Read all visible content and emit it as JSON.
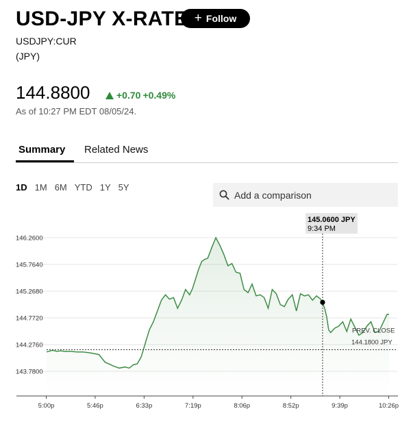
{
  "header": {
    "title": "USD-JPY X-RATE",
    "follow_label": "Follow",
    "ticker": "USDJPY:CUR",
    "currency": "(JPY)"
  },
  "quote": {
    "price": "144.8800",
    "change": "+0.70",
    "change_pct": "+0.49%",
    "as_of": "As of 10:27 PM EDT 08/05/24.",
    "up_color": "#2e8b3a"
  },
  "tabs": [
    {
      "label": "Summary",
      "active": true
    },
    {
      "label": "Related News",
      "active": false
    }
  ],
  "ranges": [
    "1D",
    "1M",
    "6M",
    "YTD",
    "1Y",
    "5Y"
  ],
  "active_range": "1D",
  "comparison": {
    "placeholder": "Add a comparison"
  },
  "chart_data": {
    "type": "area",
    "y_ticks": [
      "146.2600",
      "145.7640",
      "145.2680",
      "144.7720",
      "144.2760",
      "143.7800"
    ],
    "x_ticks": [
      "5:00p",
      "5:46p",
      "6:33p",
      "7:19p",
      "8:06p",
      "8:52p",
      "9:39p",
      "10:26p"
    ],
    "ylim": [
      143.78,
      146.26
    ],
    "prev_close": {
      "label": "PREV. CLOSE",
      "value": "144.1800 JPY",
      "y": 144.18
    },
    "tooltip": {
      "value": "145.0600 JPY",
      "time": "9:34 PM",
      "x_minutes": 274,
      "y": 145.06
    },
    "line_color": "#3f8c46",
    "x_minutes": [
      0,
      6,
      10,
      14,
      18,
      24,
      30,
      36,
      44,
      52,
      58,
      66,
      72,
      78,
      82,
      86,
      90,
      94,
      98,
      102,
      106,
      110,
      114,
      118,
      122,
      126,
      130,
      134,
      138,
      142,
      145,
      148,
      151,
      154,
      157,
      160,
      164,
      168,
      172,
      176,
      180,
      184,
      188,
      192,
      196,
      200,
      204,
      208,
      212,
      216,
      220,
      224,
      228,
      232,
      236,
      240,
      244,
      248,
      252,
      256,
      260,
      264,
      268,
      272,
      274,
      276,
      278,
      280,
      282,
      286,
      290,
      294,
      298,
      302,
      306,
      310,
      314,
      318,
      322,
      326,
      330,
      334,
      338,
      340
    ],
    "y": [
      144.14,
      144.17,
      144.15,
      144.16,
      144.15,
      144.15,
      144.14,
      144.14,
      144.12,
      144.09,
      143.95,
      143.88,
      143.84,
      143.86,
      143.84,
      143.9,
      143.92,
      144.05,
      144.3,
      144.55,
      144.7,
      144.9,
      145.1,
      145.2,
      145.12,
      145.15,
      144.95,
      145.1,
      145.3,
      145.2,
      145.32,
      145.5,
      145.68,
      145.82,
      145.86,
      145.88,
      146.08,
      146.26,
      146.12,
      145.95,
      145.74,
      145.78,
      145.62,
      145.6,
      145.3,
      145.24,
      145.4,
      145.18,
      145.2,
      145.15,
      144.95,
      145.3,
      145.22,
      145.02,
      144.98,
      145.12,
      145.2,
      144.9,
      145.22,
      145.18,
      145.2,
      145.1,
      145.18,
      145.12,
      145.06,
      144.95,
      144.8,
      144.55,
      144.5,
      144.58,
      144.62,
      144.7,
      144.52,
      144.75,
      144.6,
      144.45,
      144.5,
      144.62,
      144.7,
      144.5,
      144.52,
      144.68,
      144.84,
      144.84
    ]
  }
}
